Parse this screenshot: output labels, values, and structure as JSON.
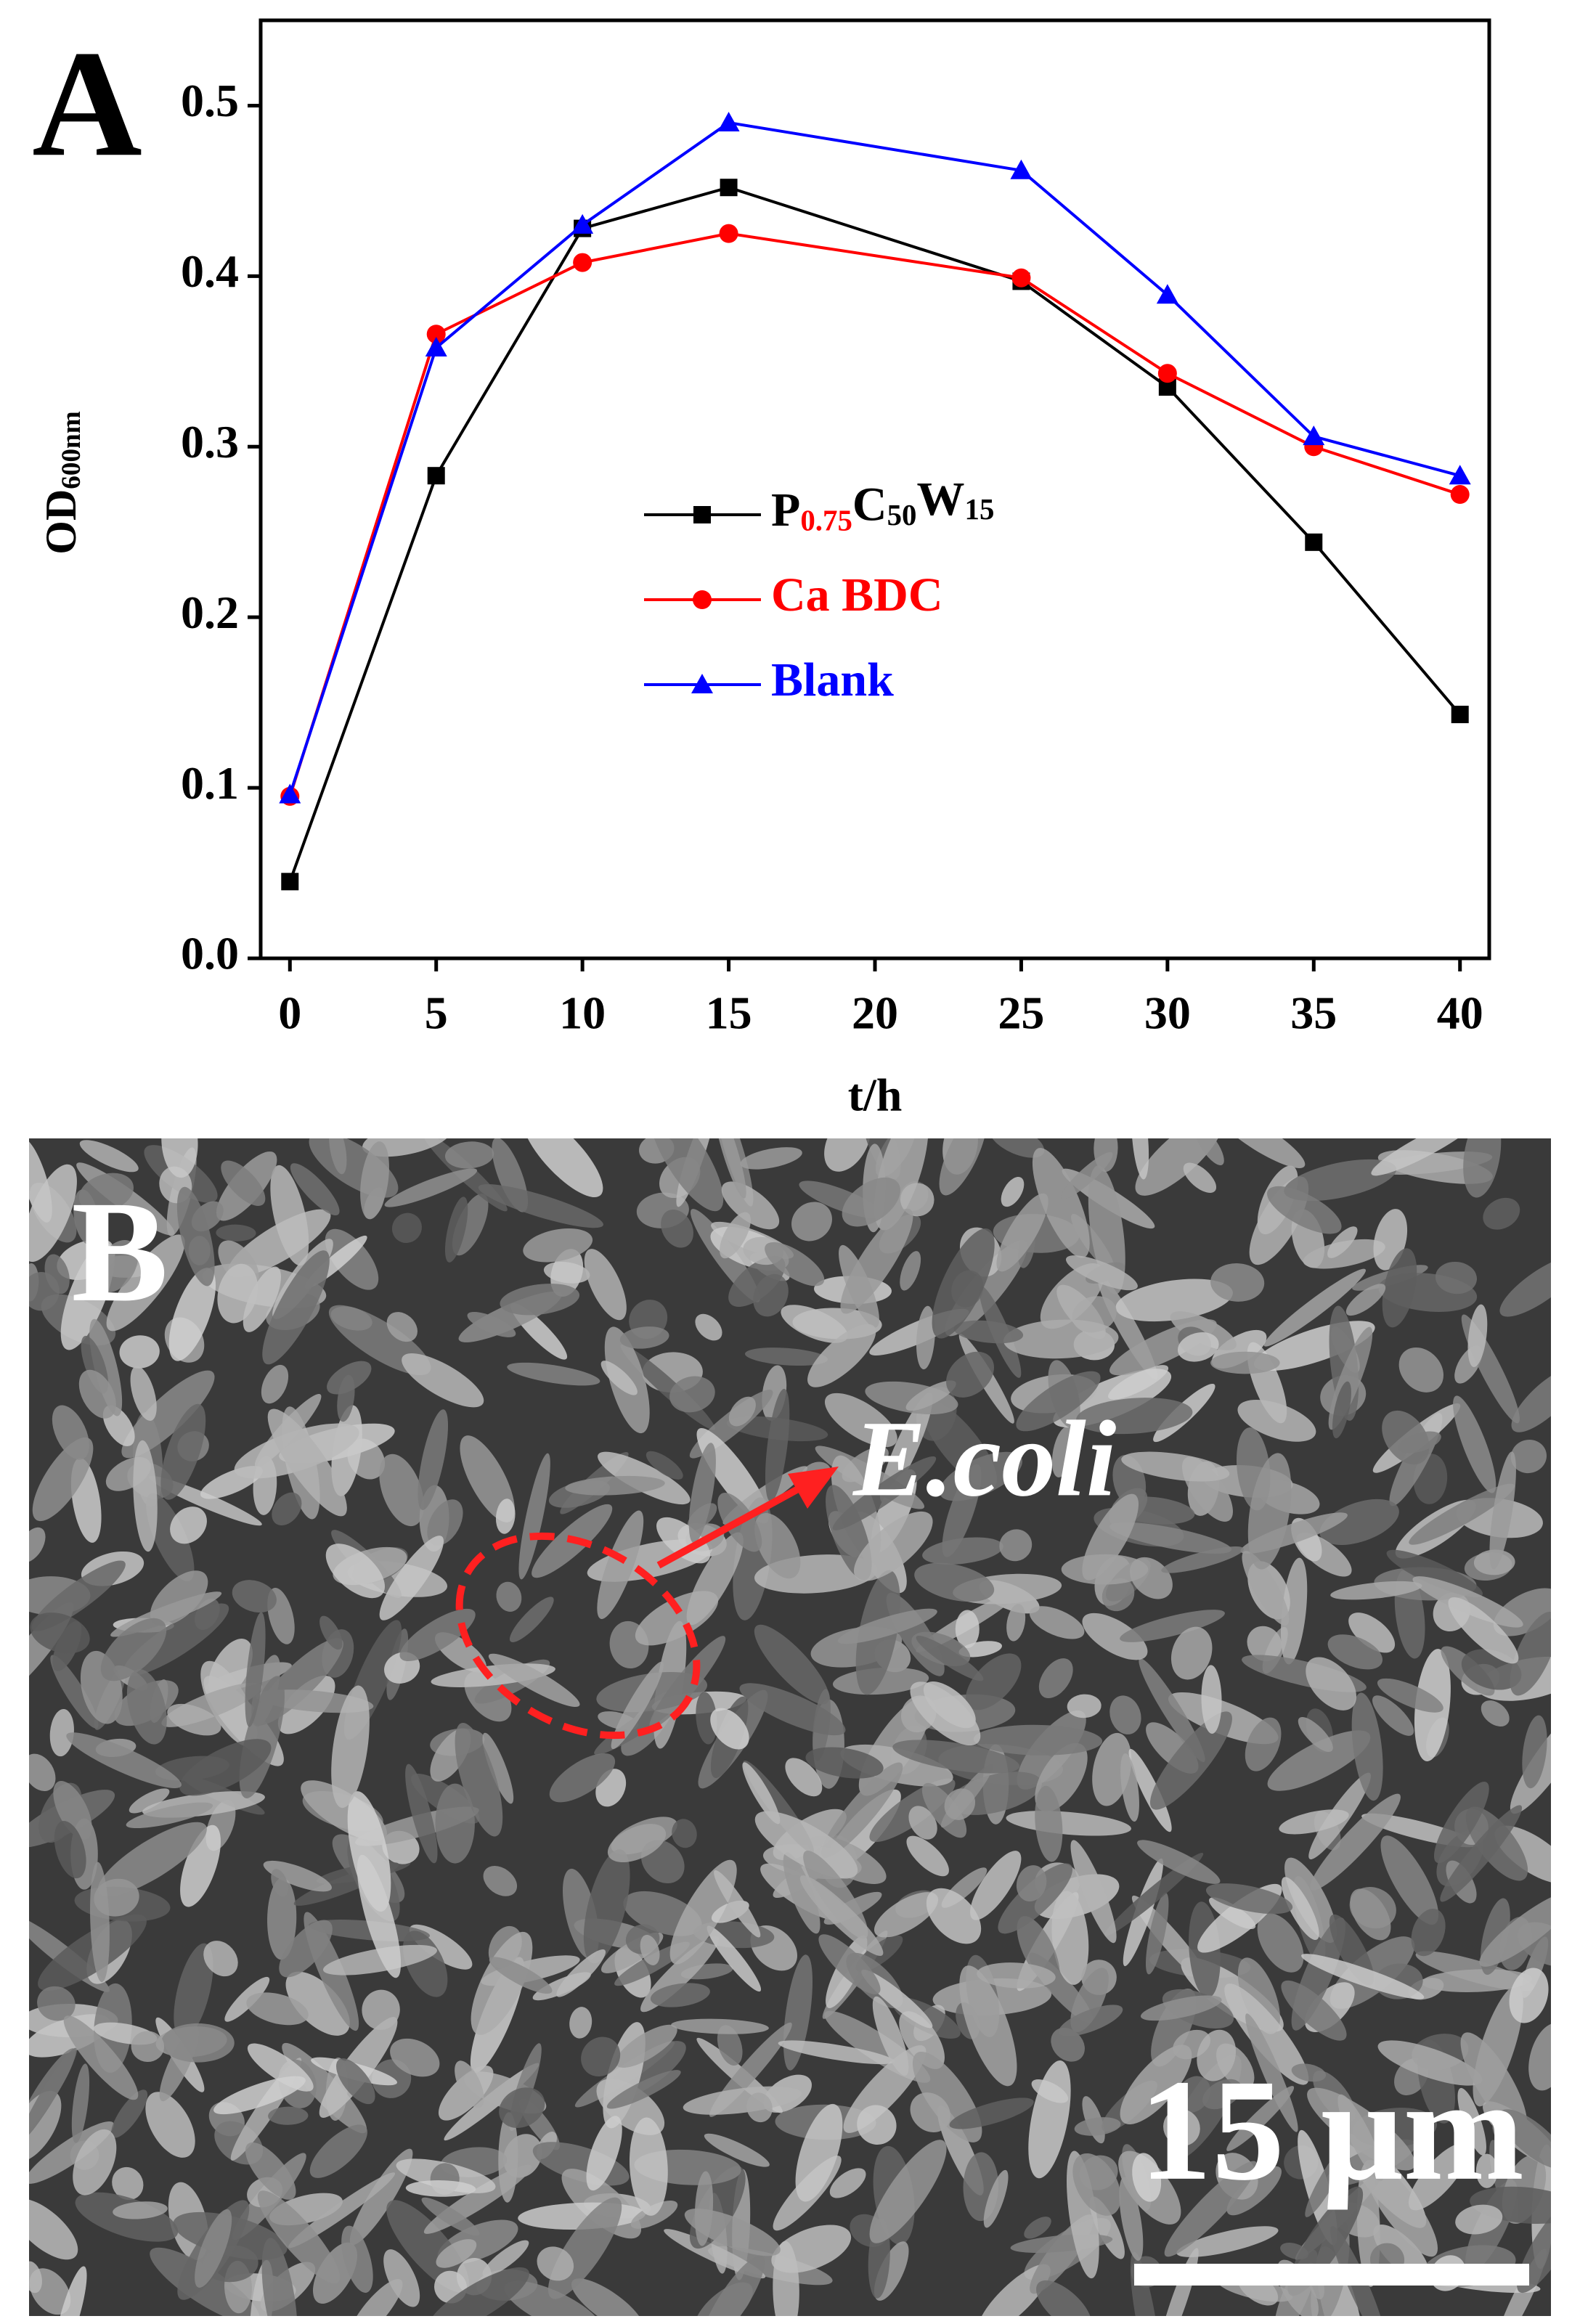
{
  "chart_data": {
    "type": "line",
    "panel_label": "A",
    "x_label": "t/h",
    "y_label": "OD600nm",
    "x": [
      0,
      5,
      10,
      15,
      25,
      30,
      35,
      40
    ],
    "series": [
      {
        "name": "P0.75C50W15",
        "color": "#000000",
        "marker": "square",
        "values": [
          0.045,
          0.283,
          0.428,
          0.452,
          0.397,
          0.335,
          0.244,
          0.143
        ]
      },
      {
        "name": "Ca BDC",
        "color": "#ff0000",
        "marker": "circle",
        "values": [
          0.095,
          0.366,
          0.408,
          0.425,
          0.399,
          0.343,
          0.3,
          0.272
        ]
      },
      {
        "name": "Blank",
        "color": "#0000ff",
        "marker": "triangle",
        "values": [
          0.096,
          0.358,
          0.43,
          0.49,
          0.462,
          0.389,
          0.306,
          0.283
        ]
      }
    ],
    "xlim": [
      -1,
      41
    ],
    "xticks": [
      0,
      5,
      10,
      15,
      20,
      25,
      30,
      35,
      40
    ],
    "ylim": [
      0,
      0.55
    ],
    "yticks": [
      {
        "value": 0,
        "label": "0.0"
      },
      0.1,
      0.2,
      0.3,
      0.4,
      0.5
    ],
    "grid": false
  },
  "image_panel": {
    "label": "B",
    "annotation": "E.coli",
    "scale_bar": "15 μm"
  }
}
